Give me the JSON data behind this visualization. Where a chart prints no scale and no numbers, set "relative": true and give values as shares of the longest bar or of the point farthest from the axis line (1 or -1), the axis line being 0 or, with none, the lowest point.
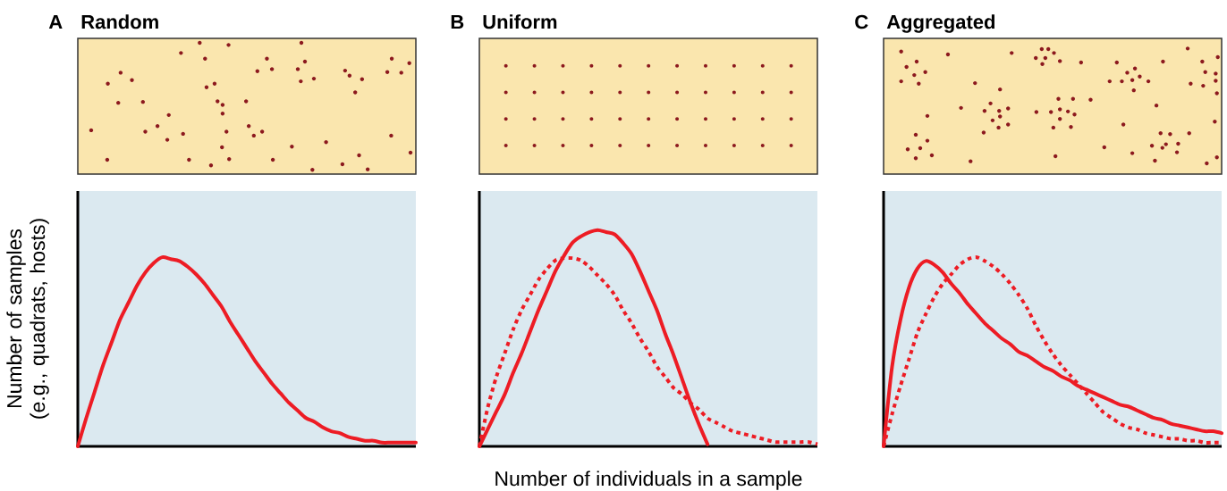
{
  "chart_data": [
    {
      "type": "line",
      "title": "Random",
      "annotations": [
        "A"
      ],
      "ylabel": "Number of samples (e.g., quadrats, hosts)",
      "relative": true,
      "categories": [
        null,
        null,
        null,
        null,
        null,
        null,
        null,
        null,
        null,
        null,
        null,
        null,
        null,
        null,
        null,
        null,
        null,
        null,
        null,
        null,
        null,
        null,
        null,
        null,
        null,
        null,
        null,
        null,
        null,
        null,
        null,
        null,
        null,
        null,
        null,
        null,
        null,
        null,
        null,
        null,
        null
      ],
      "series": [
        {
          "color": "#ed1c24",
          "line_style": "solid",
          "values": [
            0,
            0.15,
            0.29,
            0.43,
            0.55,
            0.67,
            0.76,
            0.85,
            0.92,
            0.97,
            1,
            0.99,
            0.98,
            0.95,
            0.91,
            0.86,
            0.8,
            0.74,
            0.66,
            0.59,
            0.52,
            0.45,
            0.39,
            0.33,
            0.28,
            0.23,
            0.19,
            0.15,
            0.13,
            0.1,
            0.08,
            0.07,
            0.05,
            0.04,
            0.03,
            0.03,
            0.02,
            0.02,
            0.02,
            0.02,
            0.02
          ]
        }
      ]
    },
    {
      "type": "line",
      "title": "Uniform",
      "annotations": [
        "B"
      ],
      "xlabel": "Number of individuals in a sample",
      "relative": true,
      "categories": [
        null,
        null,
        null,
        null,
        null,
        null,
        null,
        null,
        null,
        null,
        null,
        null,
        null,
        null,
        null,
        null,
        null,
        null,
        null,
        null,
        null,
        null,
        null,
        null,
        null,
        null,
        null,
        null,
        null,
        null,
        null,
        null,
        null,
        null,
        null,
        null,
        null,
        null,
        null,
        null,
        null
      ],
      "series": [
        {
          "color": "#ed1c24",
          "line_style": "solid",
          "values": [
            0,
            0.08,
            0.16,
            0.24,
            0.34,
            0.43,
            0.53,
            0.63,
            0.72,
            0.81,
            0.88,
            0.94,
            0.97,
            0.99,
            1,
            0.99,
            0.98,
            0.94,
            0.89,
            0.81,
            0.72,
            0.63,
            0.52,
            0.42,
            0.31,
            0.2,
            0.1,
            0.01,
            null,
            null,
            null,
            null,
            null,
            null,
            null,
            null,
            null,
            null,
            null,
            null,
            null
          ]
        },
        {
          "color": "#ed1c24",
          "line_style": "dotted",
          "values": [
            0,
            0.18,
            0.32,
            0.43,
            0.54,
            0.63,
            0.7,
            0.77,
            0.82,
            0.86,
            0.87,
            0.87,
            0.86,
            0.83,
            0.79,
            0.75,
            0.7,
            0.63,
            0.57,
            0.5,
            0.44,
            0.37,
            0.32,
            0.27,
            0.24,
            0.2,
            0.17,
            0.13,
            0.11,
            0.09,
            0.07,
            0.06,
            0.05,
            0.04,
            0.03,
            0.02,
            0.02,
            0.02,
            0.02,
            0.02,
            0.01
          ]
        }
      ]
    },
    {
      "type": "line",
      "title": "Aggregated",
      "annotations": [
        "C"
      ],
      "relative": true,
      "categories": [
        null,
        null,
        null,
        null,
        null,
        null,
        null,
        null,
        null,
        null,
        null,
        null,
        null,
        null,
        null,
        null,
        null,
        null,
        null,
        null,
        null,
        null,
        null,
        null,
        null,
        null,
        null,
        null,
        null,
        null,
        null,
        null,
        null,
        null,
        null,
        null,
        null,
        null,
        null,
        null,
        null
      ],
      "series": [
        {
          "color": "#ed1c24",
          "line_style": "solid",
          "values": [
            0,
            0.42,
            0.67,
            0.84,
            0.94,
            0.98,
            0.96,
            0.92,
            0.86,
            0.81,
            0.75,
            0.7,
            0.65,
            0.61,
            0.57,
            0.54,
            0.5,
            0.48,
            0.45,
            0.42,
            0.4,
            0.37,
            0.35,
            0.32,
            0.3,
            0.28,
            0.26,
            0.24,
            0.22,
            0.21,
            0.19,
            0.17,
            0.15,
            0.14,
            0.12,
            0.11,
            0.1,
            0.09,
            0.08,
            0.08,
            0.07
          ]
        },
        {
          "color": "#ed1c24",
          "line_style": "dotted",
          "values": [
            0,
            0.17,
            0.32,
            0.46,
            0.6,
            0.7,
            0.79,
            0.86,
            0.91,
            0.96,
            0.99,
            1,
            0.98,
            0.95,
            0.91,
            0.86,
            0.8,
            0.73,
            0.64,
            0.56,
            0.49,
            0.43,
            0.38,
            0.33,
            0.28,
            0.23,
            0.18,
            0.15,
            0.12,
            0.1,
            0.09,
            0.07,
            0.06,
            0.05,
            0.04,
            0.04,
            0.03,
            0.03,
            0.02,
            0.02,
            0.02
          ]
        }
      ]
    }
  ]
}
